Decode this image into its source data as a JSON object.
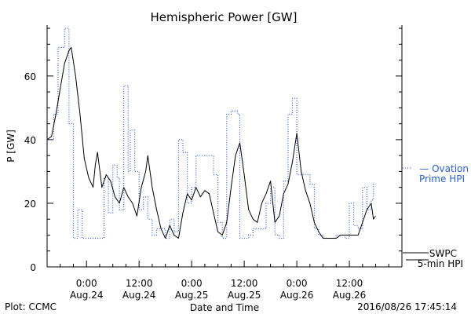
{
  "chart_data": {
    "type": "line",
    "title": "Hemispheric Power [GW]",
    "xlabel": "Date and Time",
    "ylabel": "P [GW]",
    "xlim": [
      "2016-08-23 15:00",
      "2016-08-27 00:00"
    ],
    "ylim": [
      0,
      76
    ],
    "y_ticks": [
      0,
      20,
      40,
      60
    ],
    "x_tick_labels": [
      {
        "time": "2016-08-24 00:00",
        "line1": "0:00",
        "line2": "Aug.24"
      },
      {
        "time": "2016-08-24 12:00",
        "line1": "12:00",
        "line2": "Aug.24"
      },
      {
        "time": "2016-08-25 00:00",
        "line1": "0:00",
        "line2": "Aug.25"
      },
      {
        "time": "2016-08-25 12:00",
        "line1": "12:00",
        "line2": "Aug.25"
      },
      {
        "time": "2016-08-26 00:00",
        "line1": "0:00",
        "line2": "Aug.26"
      },
      {
        "time": "2016-08-26 12:00",
        "line1": "12:00",
        "line2": "Aug.26"
      }
    ],
    "grid": false,
    "legend_placement": "right",
    "series": [
      {
        "name": "Ovation Prime HPI",
        "legend_lines": [
          "— Ovation",
          "Prime HPI"
        ],
        "color": "#2a5fd6",
        "style": "dotted-step",
        "points": [
          [
            "2016-08-23 15:00",
            40
          ],
          [
            "2016-08-23 16:30",
            48
          ],
          [
            "2016-08-23 17:30",
            69
          ],
          [
            "2016-08-23 19:00",
            75
          ],
          [
            "2016-08-23 20:00",
            45
          ],
          [
            "2016-08-23 21:00",
            9
          ],
          [
            "2016-08-23 22:00",
            18
          ],
          [
            "2016-08-23 23:00",
            9
          ],
          [
            "2016-08-24 00:00",
            9
          ],
          [
            "2016-08-24 03:30",
            9
          ],
          [
            "2016-08-24 04:00",
            28
          ],
          [
            "2016-08-24 05:00",
            17
          ],
          [
            "2016-08-24 06:00",
            32
          ],
          [
            "2016-08-24 07:00",
            28
          ],
          [
            "2016-08-24 07:30",
            18
          ],
          [
            "2016-08-24 08:30",
            57
          ],
          [
            "2016-08-24 09:30",
            30
          ],
          [
            "2016-08-24 10:00",
            43
          ],
          [
            "2016-08-24 11:00",
            30
          ],
          [
            "2016-08-24 12:00",
            18
          ],
          [
            "2016-08-24 13:00",
            22
          ],
          [
            "2016-08-24 14:00",
            15
          ],
          [
            "2016-08-24 15:00",
            10
          ],
          [
            "2016-08-24 16:00",
            12
          ],
          [
            "2016-08-24 18:00",
            9
          ],
          [
            "2016-08-24 19:00",
            15
          ],
          [
            "2016-08-24 20:00",
            11
          ],
          [
            "2016-08-24 21:00",
            40
          ],
          [
            "2016-08-24 22:00",
            36
          ],
          [
            "2016-08-24 23:00",
            20
          ],
          [
            "2016-08-25 00:00",
            25
          ],
          [
            "2016-08-25 01:00",
            35
          ],
          [
            "2016-08-25 05:00",
            29
          ],
          [
            "2016-08-25 06:00",
            14
          ],
          [
            "2016-08-25 07:00",
            9
          ],
          [
            "2016-08-25 08:00",
            48
          ],
          [
            "2016-08-25 09:00",
            49
          ],
          [
            "2016-08-25 10:30",
            48
          ],
          [
            "2016-08-25 11:00",
            9
          ],
          [
            "2016-08-25 13:00",
            10
          ],
          [
            "2016-08-25 14:00",
            12
          ],
          [
            "2016-08-25 17:00",
            20
          ],
          [
            "2016-08-25 18:00",
            25
          ],
          [
            "2016-08-25 19:00",
            10
          ],
          [
            "2016-08-25 20:00",
            9
          ],
          [
            "2016-08-25 21:00",
            27
          ],
          [
            "2016-08-25 22:00",
            48
          ],
          [
            "2016-08-25 23:00",
            53
          ],
          [
            "2016-08-26 00:00",
            29
          ],
          [
            "2016-08-26 03:00",
            26
          ],
          [
            "2016-08-26 04:00",
            12
          ],
          [
            "2016-08-26 05:00",
            10
          ],
          [
            "2016-08-26 06:00",
            9
          ],
          [
            "2016-08-26 09:00",
            10
          ],
          [
            "2016-08-26 11:00",
            9
          ],
          [
            "2016-08-26 12:00",
            20
          ],
          [
            "2016-08-26 13:00",
            13
          ],
          [
            "2016-08-26 14:00",
            12
          ],
          [
            "2016-08-26 15:00",
            25
          ],
          [
            "2016-08-26 16:00",
            18
          ],
          [
            "2016-08-26 17:00",
            21
          ],
          [
            "2016-08-26 17:30",
            26
          ],
          [
            "2016-08-26 18:00",
            26
          ]
        ]
      },
      {
        "name": "SWPC 5-min HPI",
        "legend_lines": [
          "SWPC",
          "5-min HPI"
        ],
        "color": "#000000",
        "style": "solid",
        "points": [
          [
            "2016-08-23 15:00",
            40
          ],
          [
            "2016-08-23 16:00",
            41
          ],
          [
            "2016-08-23 17:00",
            48
          ],
          [
            "2016-08-23 18:00",
            56
          ],
          [
            "2016-08-23 19:00",
            64
          ],
          [
            "2016-08-23 20:00",
            68
          ],
          [
            "2016-08-23 20:30",
            69
          ],
          [
            "2016-08-23 21:30",
            60
          ],
          [
            "2016-08-23 22:30",
            48
          ],
          [
            "2016-08-23 23:30",
            34
          ],
          [
            "2016-08-24 00:30",
            28
          ],
          [
            "2016-08-24 01:30",
            25
          ],
          [
            "2016-08-24 02:00",
            32
          ],
          [
            "2016-08-24 02:30",
            36
          ],
          [
            "2016-08-24 03:30",
            25
          ],
          [
            "2016-08-24 04:30",
            29
          ],
          [
            "2016-08-24 05:30",
            27
          ],
          [
            "2016-08-24 06:30",
            22
          ],
          [
            "2016-08-24 07:30",
            20
          ],
          [
            "2016-08-24 08:30",
            25
          ],
          [
            "2016-08-24 09:30",
            22
          ],
          [
            "2016-08-24 10:30",
            20
          ],
          [
            "2016-08-24 11:30",
            16
          ],
          [
            "2016-08-24 12:30",
            25
          ],
          [
            "2016-08-24 13:30",
            30
          ],
          [
            "2016-08-24 14:00",
            35
          ],
          [
            "2016-08-24 15:00",
            25
          ],
          [
            "2016-08-24 16:00",
            18
          ],
          [
            "2016-08-24 17:00",
            12
          ],
          [
            "2016-08-24 18:00",
            9
          ],
          [
            "2016-08-24 19:00",
            13
          ],
          [
            "2016-08-24 20:00",
            10
          ],
          [
            "2016-08-24 21:00",
            9
          ],
          [
            "2016-08-24 22:00",
            17
          ],
          [
            "2016-08-24 23:00",
            23
          ],
          [
            "2016-08-25 00:00",
            21
          ],
          [
            "2016-08-25 01:00",
            25
          ],
          [
            "2016-08-25 02:00",
            22
          ],
          [
            "2016-08-25 03:00",
            24
          ],
          [
            "2016-08-25 04:00",
            23
          ],
          [
            "2016-08-25 05:00",
            17
          ],
          [
            "2016-08-25 06:00",
            11
          ],
          [
            "2016-08-25 07:00",
            10
          ],
          [
            "2016-08-25 08:00",
            14
          ],
          [
            "2016-08-25 09:00",
            25
          ],
          [
            "2016-08-25 10:00",
            35
          ],
          [
            "2016-08-25 11:00",
            39
          ],
          [
            "2016-08-25 12:00",
            29
          ],
          [
            "2016-08-25 13:00",
            18
          ],
          [
            "2016-08-25 14:00",
            15
          ],
          [
            "2016-08-25 15:00",
            14
          ],
          [
            "2016-08-25 16:00",
            20
          ],
          [
            "2016-08-25 17:00",
            23
          ],
          [
            "2016-08-25 18:00",
            27
          ],
          [
            "2016-08-25 19:00",
            14
          ],
          [
            "2016-08-25 20:00",
            16
          ],
          [
            "2016-08-25 21:00",
            23
          ],
          [
            "2016-08-25 22:00",
            26
          ],
          [
            "2016-08-25 23:00",
            33
          ],
          [
            "2016-08-26 00:00",
            42
          ],
          [
            "2016-08-26 01:00",
            30
          ],
          [
            "2016-08-26 02:00",
            24
          ],
          [
            "2016-08-26 03:00",
            20
          ],
          [
            "2016-08-26 04:00",
            14
          ],
          [
            "2016-08-26 05:00",
            11
          ],
          [
            "2016-08-26 06:00",
            9
          ],
          [
            "2016-08-26 09:00",
            9
          ],
          [
            "2016-08-26 10:00",
            10
          ],
          [
            "2016-08-26 14:00",
            10
          ],
          [
            "2016-08-26 15:00",
            14
          ],
          [
            "2016-08-26 16:00",
            18
          ],
          [
            "2016-08-26 17:00",
            20
          ],
          [
            "2016-08-26 17:30",
            15
          ],
          [
            "2016-08-26 18:00",
            16
          ]
        ]
      }
    ]
  },
  "footer": {
    "left": "Plot: CCMC",
    "right": "2016/08/26 17:45:14"
  }
}
